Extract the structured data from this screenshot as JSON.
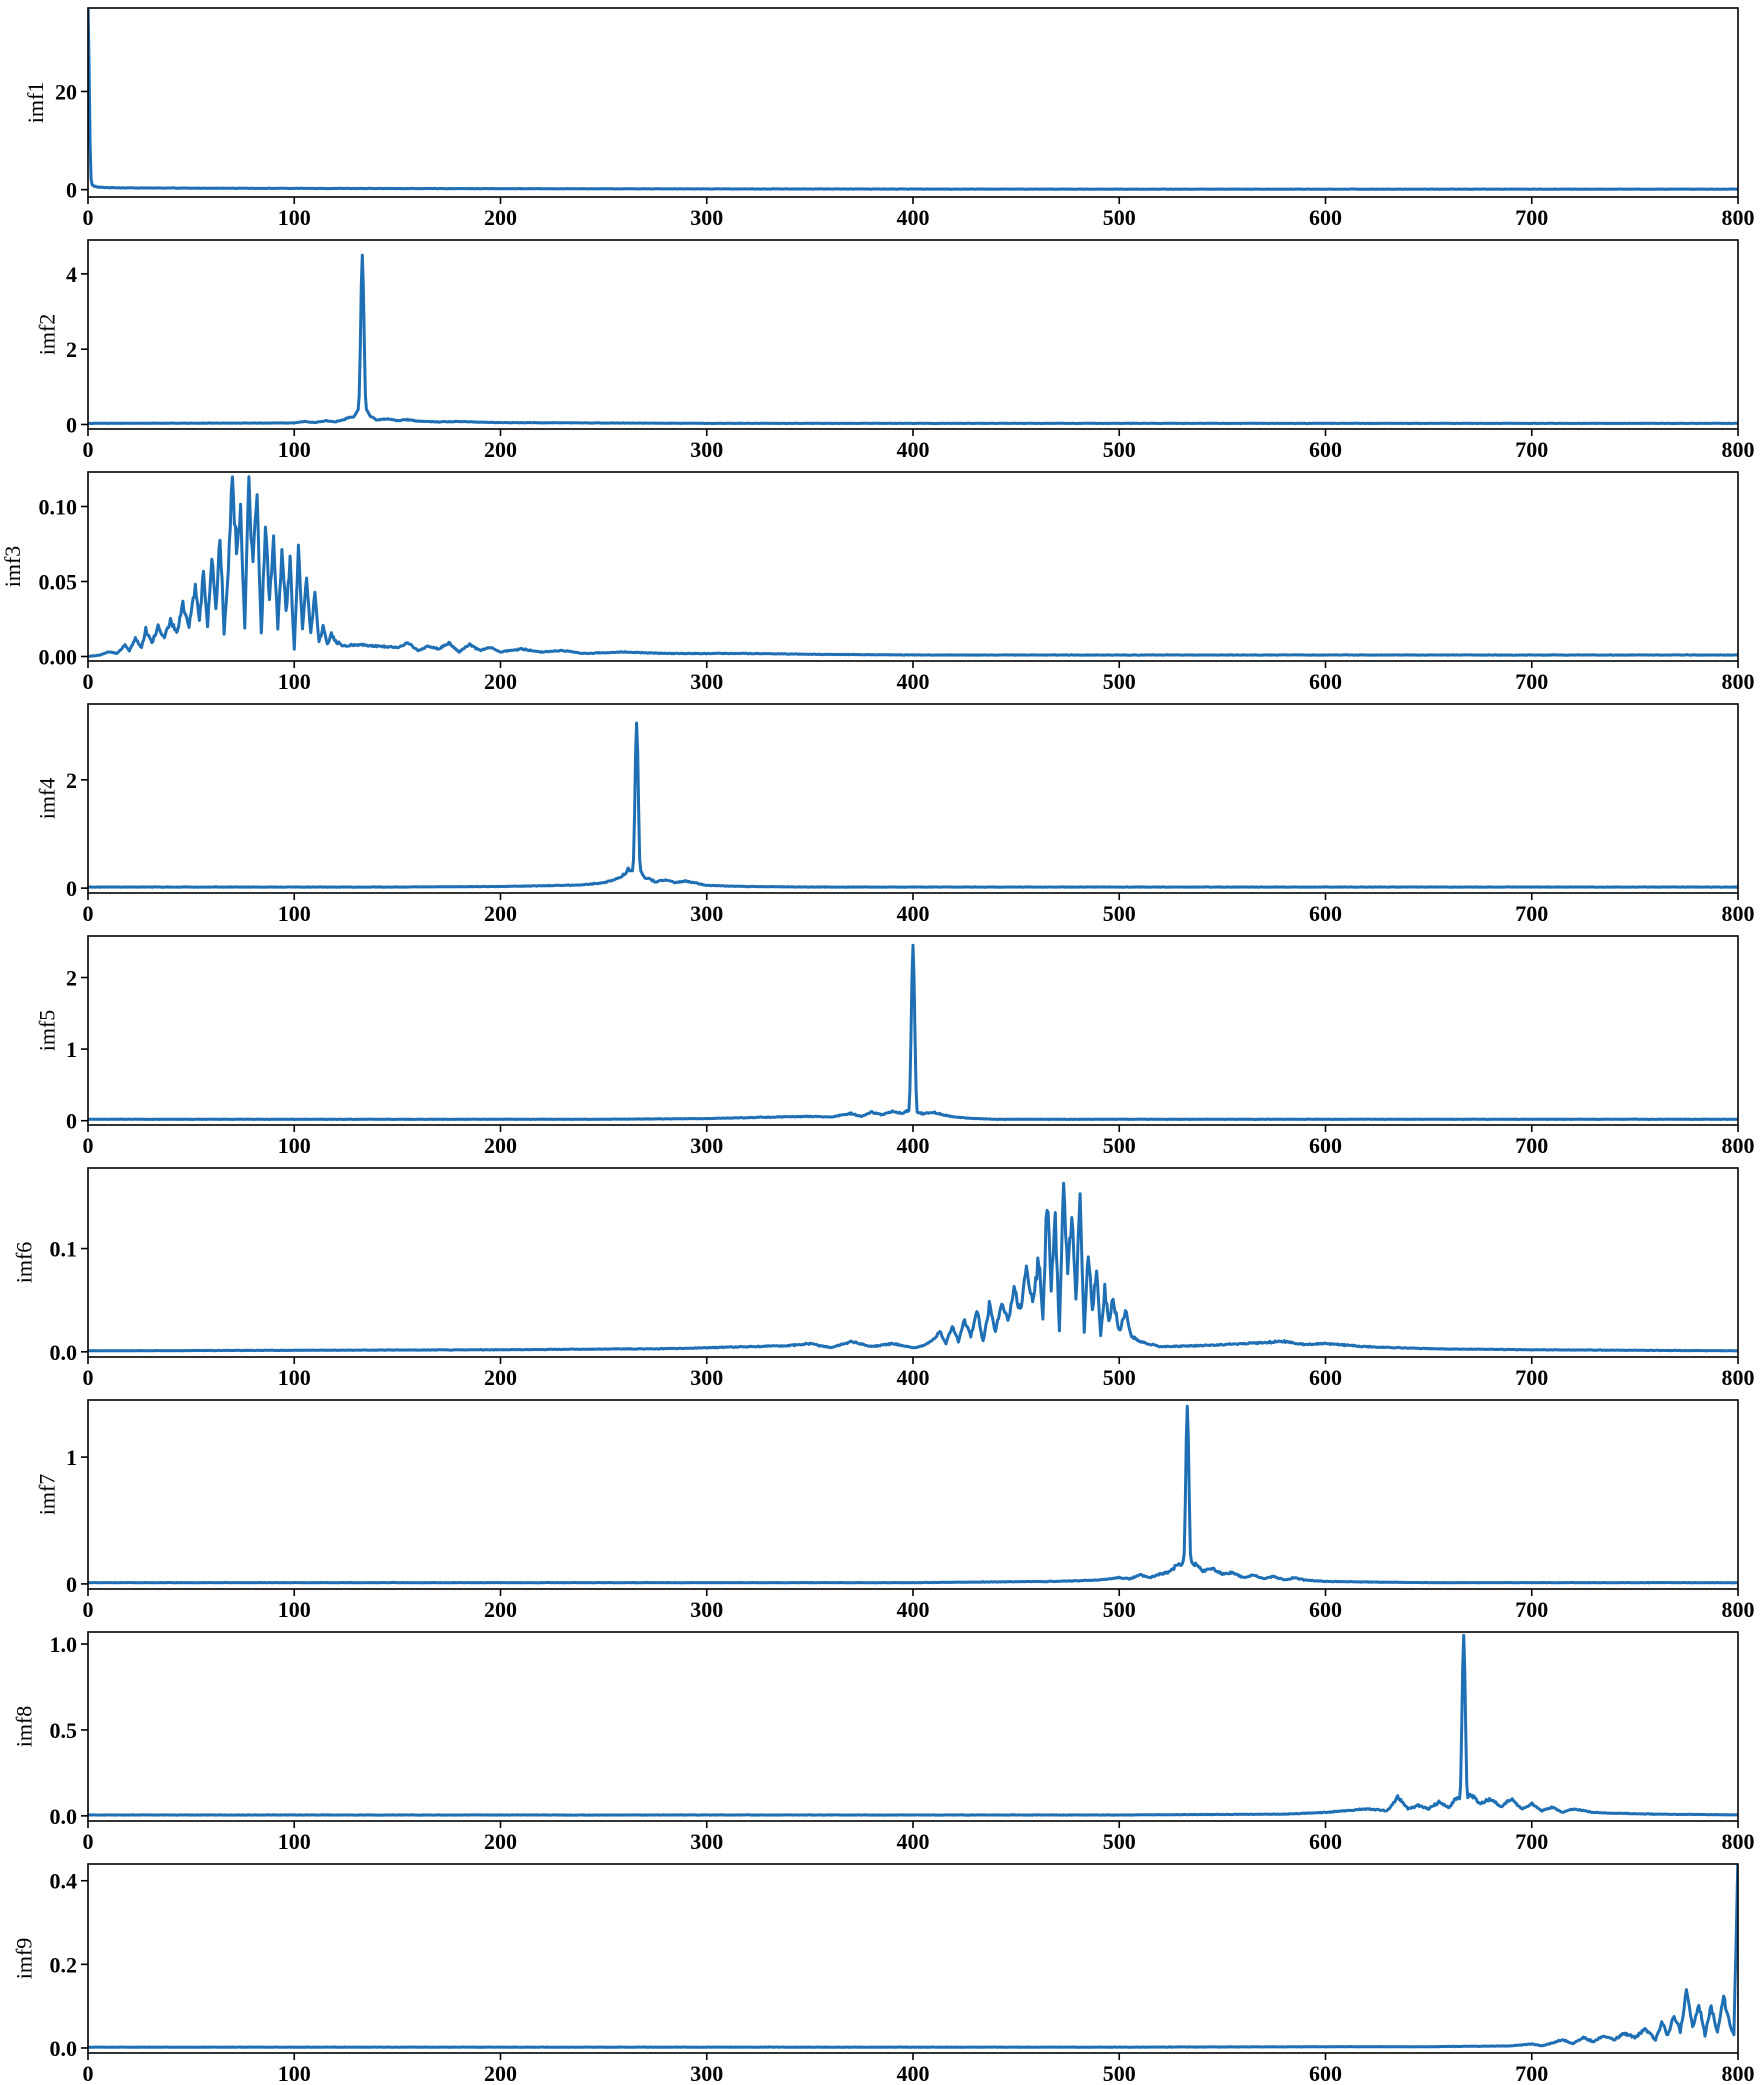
{
  "colors": {
    "series": "#1f6fb4",
    "axes": "#000000",
    "background": "#ffffff"
  },
  "chart_data": [
    {
      "type": "line",
      "ylabel": "imf1",
      "xlim": [
        0,
        800
      ],
      "ylim": [
        -1.5,
        37
      ],
      "xticks": [
        0,
        100,
        200,
        300,
        400,
        500,
        600,
        700,
        800
      ],
      "yticks": [
        0,
        20
      ],
      "peaks": [
        {
          "x": 0,
          "y": 37,
          "w": 0.6
        }
      ],
      "x": [
        0,
        0.6,
        1.2,
        2,
        3,
        5,
        10,
        20,
        50,
        100,
        200,
        300,
        400,
        500,
        600,
        700,
        800
      ],
      "y": [
        37,
        14,
        3,
        1.0,
        0.7,
        0.5,
        0.4,
        0.35,
        0.3,
        0.25,
        0.2,
        0.15,
        0.12,
        0.1,
        0.1,
        0.1,
        0.1
      ]
    },
    {
      "type": "line",
      "ylabel": "imf2",
      "xlim": [
        0,
        800
      ],
      "ylim": [
        -0.12,
        4.9
      ],
      "xticks": [
        0,
        100,
        200,
        300,
        400,
        500,
        600,
        700,
        800
      ],
      "yticks": [
        0,
        2,
        4
      ],
      "peaks": [
        {
          "x": 133,
          "y": 4.5,
          "w": 0.8
        },
        {
          "x": 133,
          "y": 0.5,
          "w": 3
        }
      ],
      "x": [
        0,
        100,
        105,
        110,
        115,
        120,
        125,
        128,
        136,
        140,
        145,
        150,
        155,
        160,
        170,
        180,
        190,
        200,
        250,
        300,
        800
      ],
      "y": [
        0.03,
        0.04,
        0.08,
        0.05,
        0.1,
        0.07,
        0.15,
        0.2,
        0.25,
        0.12,
        0.15,
        0.1,
        0.13,
        0.09,
        0.07,
        0.08,
        0.06,
        0.05,
        0.04,
        0.03,
        0.03
      ]
    },
    {
      "type": "line",
      "ylabel": "imf3",
      "xlim": [
        0,
        800
      ],
      "ylim": [
        -0.003,
        0.123
      ],
      "xticks": [
        0,
        100,
        200,
        300,
        400,
        500,
        600,
        700,
        800
      ],
      "yticks": [
        0,
        0.05,
        0.1
      ],
      "ytick_labels": [
        "0.00",
        "0.05",
        "0.10"
      ],
      "peaks": [],
      "x": [
        0,
        6,
        10,
        14,
        18,
        20,
        23,
        26,
        28,
        31,
        34,
        37,
        40,
        43,
        46,
        49,
        52,
        54,
        56,
        58,
        60,
        62,
        64,
        66,
        68,
        70,
        72,
        74,
        76,
        78,
        80,
        82,
        84,
        86,
        88,
        90,
        92,
        94,
        96,
        98,
        100,
        102,
        104,
        106,
        108,
        110,
        112,
        114,
        116,
        118,
        120,
        124,
        130,
        140,
        150,
        155,
        160,
        165,
        170,
        175,
        180,
        185,
        190,
        195,
        200,
        210,
        220,
        230,
        240,
        260,
        280,
        300,
        320,
        350,
        400,
        500,
        600,
        700,
        800
      ],
      "y": [
        0.0,
        0.001,
        0.003,
        0.002,
        0.008,
        0.004,
        0.012,
        0.006,
        0.018,
        0.009,
        0.02,
        0.012,
        0.025,
        0.015,
        0.035,
        0.02,
        0.045,
        0.025,
        0.055,
        0.02,
        0.065,
        0.03,
        0.085,
        0.015,
        0.06,
        0.12,
        0.07,
        0.1,
        0.02,
        0.115,
        0.06,
        0.11,
        0.015,
        0.085,
        0.04,
        0.075,
        0.02,
        0.07,
        0.03,
        0.065,
        0.005,
        0.07,
        0.02,
        0.05,
        0.015,
        0.04,
        0.01,
        0.02,
        0.008,
        0.015,
        0.01,
        0.007,
        0.008,
        0.007,
        0.006,
        0.009,
        0.004,
        0.007,
        0.005,
        0.009,
        0.003,
        0.008,
        0.004,
        0.006,
        0.003,
        0.005,
        0.003,
        0.004,
        0.002,
        0.003,
        0.002,
        0.002,
        0.002,
        0.0015,
        0.001,
        0.001,
        0.001,
        0.001,
        0.001
      ]
    },
    {
      "type": "line",
      "ylabel": "imf4",
      "xlim": [
        0,
        800
      ],
      "ylim": [
        -0.09,
        3.4
      ],
      "xticks": [
        0,
        100,
        200,
        300,
        400,
        500,
        600,
        700,
        800
      ],
      "yticks": [
        0,
        2
      ],
      "peaks": [
        {
          "x": 266,
          "y": 3.05,
          "w": 0.8
        },
        {
          "x": 266,
          "y": 0.4,
          "w": 3
        }
      ],
      "x": [
        0,
        150,
        200,
        230,
        240,
        250,
        255,
        260,
        262,
        270,
        275,
        280,
        285,
        290,
        300,
        310,
        320,
        350,
        800
      ],
      "y": [
        0.02,
        0.02,
        0.03,
        0.05,
        0.06,
        0.1,
        0.15,
        0.25,
        0.35,
        0.2,
        0.12,
        0.15,
        0.1,
        0.13,
        0.05,
        0.04,
        0.03,
        0.02,
        0.02
      ]
    },
    {
      "type": "line",
      "ylabel": "imf5",
      "xlim": [
        0,
        800
      ],
      "ylim": [
        -0.06,
        2.58
      ],
      "xticks": [
        0,
        100,
        200,
        300,
        400,
        500,
        600,
        700,
        800
      ],
      "yticks": [
        0,
        1,
        2
      ],
      "peaks": [
        {
          "x": 400,
          "y": 2.45,
          "w": 0.8
        }
      ],
      "x": [
        0,
        250,
        300,
        330,
        350,
        360,
        370,
        375,
        380,
        385,
        390,
        395,
        398,
        402,
        405,
        410,
        415,
        420,
        430,
        440,
        450,
        800
      ],
      "y": [
        0.02,
        0.02,
        0.03,
        0.05,
        0.06,
        0.05,
        0.1,
        0.06,
        0.12,
        0.08,
        0.13,
        0.1,
        0.15,
        0.12,
        0.1,
        0.12,
        0.08,
        0.05,
        0.03,
        0.02,
        0.02,
        0.02
      ]
    },
    {
      "type": "line",
      "ylabel": "imf6",
      "xlim": [
        0,
        800
      ],
      "ylim": [
        -0.005,
        0.178
      ],
      "xticks": [
        0,
        100,
        200,
        300,
        400,
        500,
        600,
        700,
        800
      ],
      "yticks": [
        0,
        0.1
      ],
      "ytick_labels": [
        "0.0",
        "0.1"
      ],
      "peaks": [],
      "x": [
        0,
        200,
        280,
        300,
        320,
        340,
        350,
        360,
        370,
        380,
        390,
        400,
        405,
        410,
        413,
        416,
        419,
        422,
        425,
        428,
        431,
        434,
        437,
        440,
        443,
        446,
        449,
        452,
        455,
        458,
        461,
        463,
        465,
        467,
        469,
        471,
        473,
        475,
        477,
        479,
        481,
        483,
        485,
        487,
        489,
        491,
        493,
        495,
        497,
        500,
        503,
        506,
        510,
        520,
        540,
        560,
        580,
        590,
        600,
        620,
        650,
        700,
        800
      ],
      "y": [
        0.001,
        0.002,
        0.003,
        0.004,
        0.005,
        0.006,
        0.008,
        0.004,
        0.01,
        0.005,
        0.008,
        0.004,
        0.006,
        0.012,
        0.02,
        0.008,
        0.025,
        0.01,
        0.03,
        0.015,
        0.04,
        0.01,
        0.045,
        0.02,
        0.05,
        0.03,
        0.06,
        0.04,
        0.08,
        0.05,
        0.09,
        0.03,
        0.15,
        0.06,
        0.13,
        0.02,
        0.17,
        0.07,
        0.14,
        0.05,
        0.15,
        0.02,
        0.1,
        0.04,
        0.08,
        0.015,
        0.06,
        0.03,
        0.05,
        0.02,
        0.04,
        0.015,
        0.01,
        0.005,
        0.006,
        0.008,
        0.01,
        0.007,
        0.008,
        0.005,
        0.003,
        0.002,
        0.001
      ]
    },
    {
      "type": "line",
      "ylabel": "imf7",
      "xlim": [
        0,
        800
      ],
      "ylim": [
        -0.04,
        1.45
      ],
      "xticks": [
        0,
        100,
        200,
        300,
        400,
        500,
        600,
        700,
        800
      ],
      "yticks": [
        0,
        1
      ],
      "peaks": [
        {
          "x": 533,
          "y": 1.4,
          "w": 0.8
        },
        {
          "x": 533,
          "y": 0.25,
          "w": 2.5
        }
      ],
      "x": [
        0,
        400,
        470,
        490,
        500,
        505,
        510,
        515,
        520,
        525,
        528,
        538,
        540,
        545,
        550,
        555,
        560,
        565,
        570,
        575,
        580,
        585,
        590,
        600,
        620,
        650,
        800
      ],
      "y": [
        0.01,
        0.01,
        0.02,
        0.03,
        0.05,
        0.04,
        0.07,
        0.05,
        0.08,
        0.1,
        0.15,
        0.15,
        0.1,
        0.12,
        0.08,
        0.09,
        0.05,
        0.07,
        0.04,
        0.06,
        0.03,
        0.05,
        0.03,
        0.02,
        0.015,
        0.01,
        0.01
      ]
    },
    {
      "type": "line",
      "ylabel": "imf8",
      "xlim": [
        0,
        800
      ],
      "ylim": [
        -0.03,
        1.07
      ],
      "xticks": [
        0,
        100,
        200,
        300,
        400,
        500,
        600,
        700,
        800
      ],
      "yticks": [
        0,
        0.5,
        1
      ],
      "ytick_labels": [
        "0.0",
        "0.5",
        "1.0"
      ],
      "peaks": [
        {
          "x": 667,
          "y": 1.05,
          "w": 0.8
        }
      ],
      "x": [
        0,
        500,
        580,
        600,
        610,
        620,
        630,
        635,
        640,
        645,
        650,
        655,
        660,
        663,
        671,
        675,
        680,
        685,
        690,
        695,
        700,
        705,
        710,
        715,
        720,
        730,
        740,
        760,
        780,
        800
      ],
      "y": [
        0.005,
        0.005,
        0.01,
        0.02,
        0.03,
        0.04,
        0.03,
        0.11,
        0.04,
        0.06,
        0.04,
        0.08,
        0.05,
        0.1,
        0.12,
        0.07,
        0.1,
        0.05,
        0.1,
        0.04,
        0.07,
        0.03,
        0.05,
        0.02,
        0.04,
        0.02,
        0.015,
        0.01,
        0.008,
        0.005
      ]
    },
    {
      "type": "line",
      "ylabel": "imf9",
      "xlim": [
        0,
        800
      ],
      "ylim": [
        -0.012,
        0.44
      ],
      "xticks": [
        0,
        100,
        200,
        300,
        400,
        500,
        600,
        700,
        800
      ],
      "yticks": [
        0,
        0.2,
        0.4
      ],
      "ytick_labels": [
        "0.0",
        "0.2",
        "0.4"
      ],
      "peaks": [],
      "x": [
        0,
        500,
        600,
        650,
        690,
        700,
        705,
        710,
        715,
        720,
        725,
        730,
        735,
        740,
        745,
        750,
        755,
        760,
        763,
        766,
        769,
        772,
        775,
        778,
        781,
        784,
        787,
        790,
        793,
        796,
        798,
        800
      ],
      "y": [
        0.002,
        0.002,
        0.003,
        0.003,
        0.005,
        0.01,
        0.005,
        0.012,
        0.02,
        0.01,
        0.025,
        0.015,
        0.03,
        0.02,
        0.035,
        0.025,
        0.045,
        0.02,
        0.06,
        0.03,
        0.08,
        0.04,
        0.13,
        0.05,
        0.11,
        0.03,
        0.1,
        0.04,
        0.12,
        0.06,
        0.03,
        0.44
      ]
    }
  ]
}
